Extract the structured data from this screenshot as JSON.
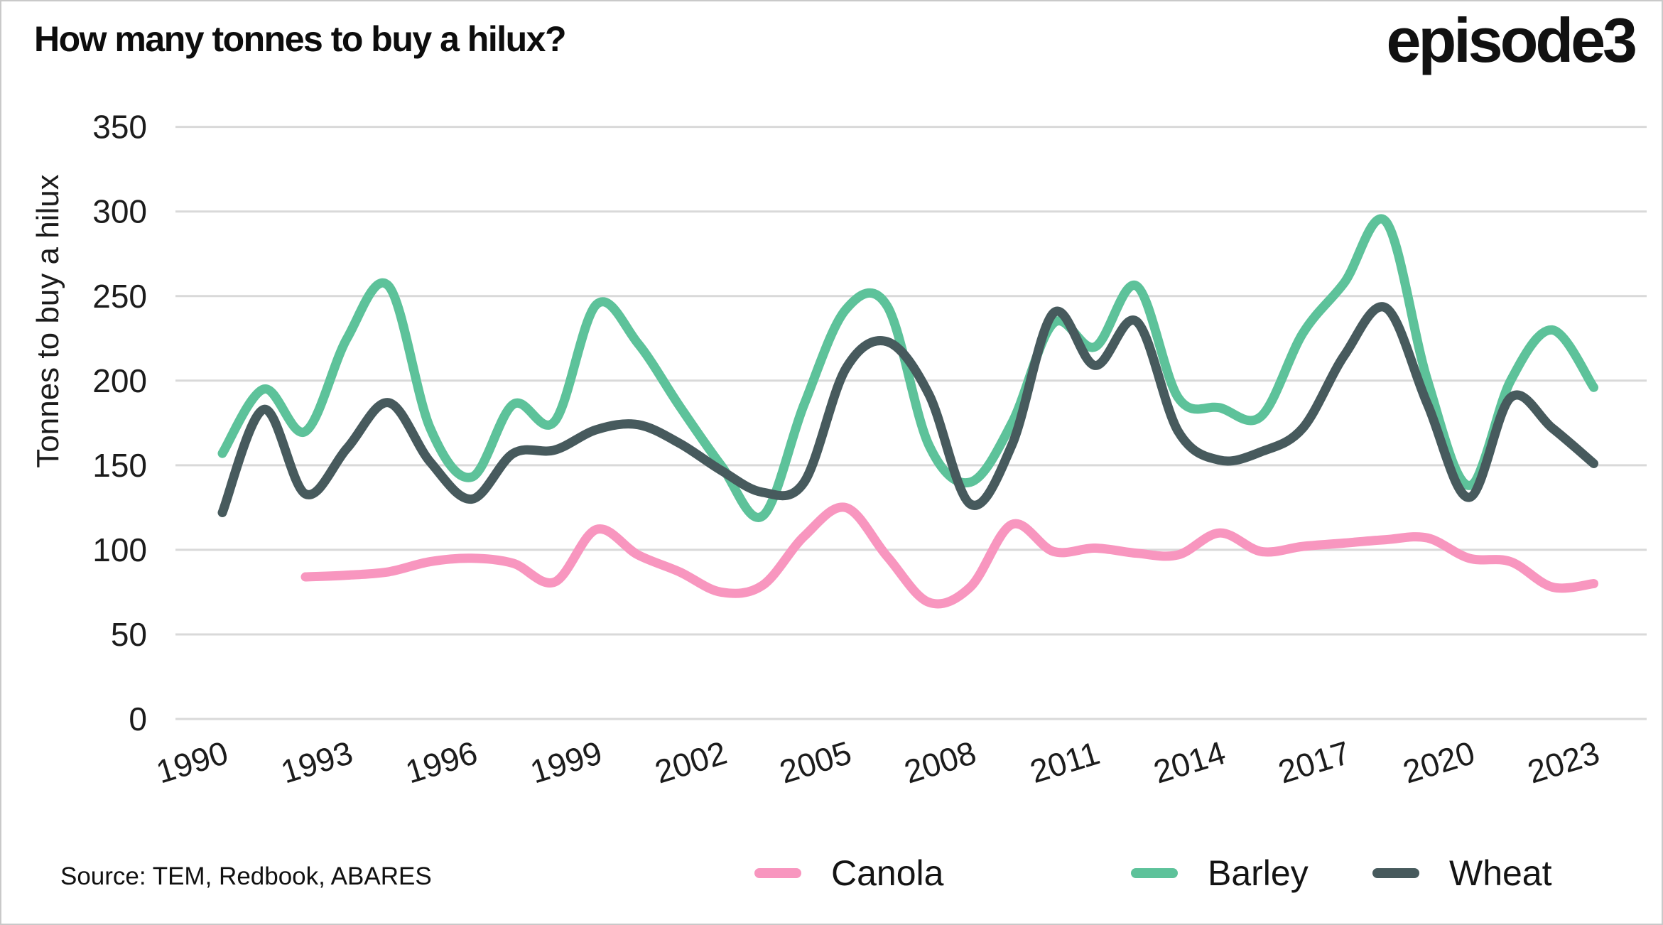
{
  "page": {
    "background": "#ffffff",
    "border_color": "#c9c9c9"
  },
  "header": {
    "title": "How many tonnes to buy a hilux?",
    "logo_text": "episode3"
  },
  "footer": {
    "source": "Source: TEM, Redbook, ABARES"
  },
  "legend": {
    "items": [
      {
        "label": "Canola",
        "color": "#F896BF"
      },
      {
        "label": "Barley",
        "color": "#5DC29A"
      },
      {
        "label": "Wheat",
        "color": "#475A5D"
      }
    ]
  },
  "colors": {
    "canola": "#F896BF",
    "barley": "#5DC29A",
    "wheat": "#475A5D",
    "gridline": "#D9D9D9",
    "tick_text": "#1C1C1C"
  },
  "chart_data": {
    "type": "line",
    "title": "How many tonnes to buy a hilux?",
    "xlabel": "",
    "ylabel": "Tonnes to buy a hilux",
    "ylim": [
      0,
      350
    ],
    "y_ticks": [
      0,
      50,
      100,
      150,
      200,
      250,
      300,
      350
    ],
    "x_tick_years": [
      1990,
      1993,
      1996,
      1999,
      2002,
      2005,
      2008,
      2011,
      2014,
      2017,
      2020,
      2023
    ],
    "grid": true,
    "legend_position": "bottom",
    "series": [
      {
        "name": "Canola",
        "color": "#F896BF",
        "start_year": 1992,
        "values": [
          84,
          85,
          87,
          93,
          95,
          92,
          81,
          112,
          97,
          87,
          75,
          79,
          108,
          125,
          96,
          69,
          78,
          115,
          99,
          101,
          98,
          97,
          110,
          99,
          102,
          104,
          106,
          107,
          95,
          93,
          78,
          80
        ]
      },
      {
        "name": "Barley",
        "color": "#5DC29A",
        "start_year": 1990,
        "values": [
          157,
          195,
          170,
          225,
          256,
          172,
          143,
          186,
          176,
          245,
          222,
          185,
          150,
          120,
          186,
          242,
          244,
          162,
          140,
          175,
          234,
          220,
          256,
          190,
          184,
          179,
          228,
          258,
          294,
          200,
          138,
          200,
          230,
          196
        ]
      },
      {
        "name": "Wheat",
        "color": "#475A5D",
        "start_year": 1990,
        "values": [
          122,
          183,
          133,
          160,
          187,
          152,
          130,
          157,
          159,
          171,
          174,
          163,
          147,
          134,
          140,
          207,
          223,
          192,
          127,
          162,
          240,
          209,
          235,
          170,
          153,
          158,
          172,
          215,
          243,
          186,
          131,
          190,
          172,
          151
        ]
      }
    ]
  }
}
